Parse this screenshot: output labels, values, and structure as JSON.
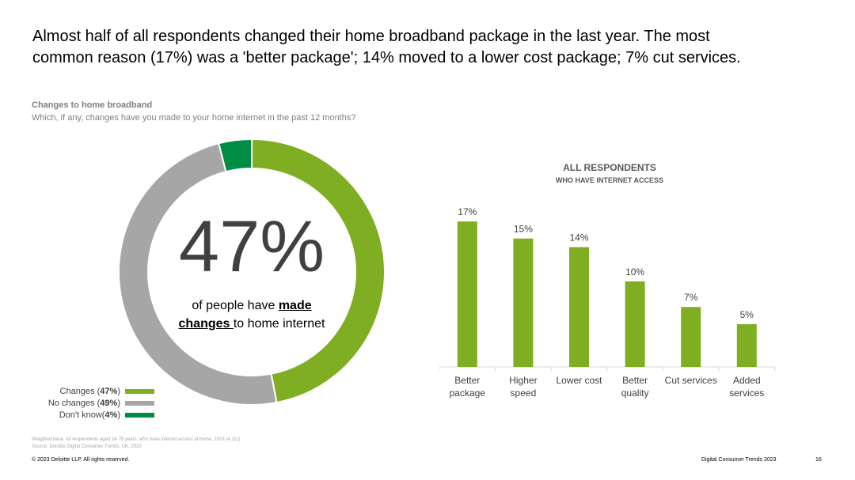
{
  "headline": {
    "line1": "Almost half of all respondents changed their home broadband package in the last year. The most",
    "line2": "common reason (17%) was a 'better package'; 14% moved to a lower cost package; 7% cut services."
  },
  "section": {
    "title": "Changes to home broadband",
    "subtitle": "Which, if any, changes have you made to your home internet in the past 12 months?"
  },
  "donut": {
    "big_value": "47%",
    "caption_pre": "of people have ",
    "caption_bold": "made changes ",
    "caption_post": "to home internet"
  },
  "legend": [
    {
      "label": "Changes (",
      "pct": "47%",
      "close": ")",
      "color": "#7fae22"
    },
    {
      "label": "No changes (",
      "pct": "49%",
      "close": ")",
      "color": "#a6a6a6"
    },
    {
      "label": "Don't know(",
      "pct": "4%",
      "close": ")",
      "color": "#008c45"
    }
  ],
  "bar_chart": {
    "header": "ALL RESPONDENTS",
    "subheader": "WHO HAVE INTERNET ACCESS"
  },
  "chart_data": [
    {
      "type": "pie",
      "variant": "donut",
      "labels": [
        "Changes",
        "No changes",
        "Don't know"
      ],
      "values": [
        47,
        49,
        4
      ],
      "colors": [
        "#7fae22",
        "#a6a6a6",
        "#008c45"
      ]
    },
    {
      "type": "bar",
      "categories": [
        [
          "Better",
          "package"
        ],
        [
          "Higher",
          "speed"
        ],
        [
          "Lower cost"
        ],
        [
          "Better",
          "quality"
        ],
        [
          "Cut services"
        ],
        [
          "Added",
          "services"
        ]
      ],
      "values": [
        17,
        15,
        14,
        10,
        7,
        5
      ],
      "data_labels": [
        "17%",
        "15%",
        "14%",
        "10%",
        "7%",
        "5%"
      ],
      "bar_color": "#7fae22",
      "ylim": [
        0,
        17
      ]
    }
  ],
  "footer": {
    "base_note": "Weighted base: All respondents aged 16-75 years, who have internet access at home, 2023 (4,111)",
    "source_note": "Source: Deloitte Digital Consumer Trends, UK, 2023",
    "copyright": "© 2023 Deloitte LLP. All rights reserved.",
    "title": "Digital Consumer Trends 2023",
    "page": "16"
  }
}
